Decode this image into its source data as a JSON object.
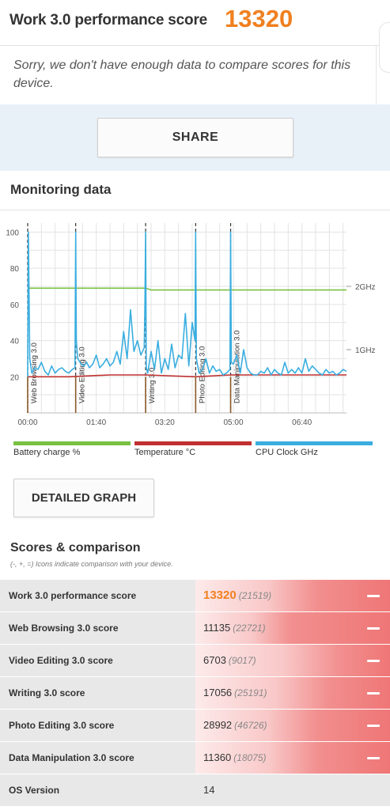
{
  "header": {
    "title": "Work 3.0 performance score",
    "score": "13320"
  },
  "notice": "Sorry, we don't have enough data to compare scores for this device.",
  "share_label": "SHARE",
  "monitoring": {
    "title": "Monitoring data",
    "chart_data": {
      "type": "line",
      "x_ticks": [
        "00:00",
        "01:40",
        "03:20",
        "05:00",
        "06:40"
      ],
      "y_ticks": [
        "100",
        "80",
        "60",
        "40",
        "20"
      ],
      "ylim": [
        0,
        105
      ],
      "y2_ticks": [
        "2GHz",
        "1GHz"
      ],
      "xlim_seconds": [
        0,
        465
      ],
      "grid": true,
      "markers": [
        {
          "label": "Web Browsing 3.0",
          "t": 0
        },
        {
          "label": "Video Editing 3.0",
          "t": 70
        },
        {
          "label": "Writing 3.0",
          "t": 172
        },
        {
          "label": "Photo Editing 3.0",
          "t": 245
        },
        {
          "label": "Data Manipulation 3.0",
          "t": 296
        }
      ],
      "series": [
        {
          "name": "Battery charge %",
          "color": "#7ac142",
          "x": [
            0,
            172,
            180,
            465
          ],
          "y": [
            69,
            69,
            68,
            68
          ]
        },
        {
          "name": "Temperature °C",
          "color": "#c03030",
          "x": [
            0,
            60,
            120,
            172,
            245,
            296,
            465
          ],
          "y": [
            20,
            20,
            21,
            21,
            20,
            21,
            21
          ]
        },
        {
          "name": "CPU Clock GHz",
          "color": "#3aaee0",
          "x": [
            0,
            1,
            3,
            6,
            10,
            15,
            20,
            25,
            30,
            35,
            40,
            45,
            50,
            55,
            60,
            65,
            69,
            70,
            71,
            73,
            78,
            82,
            86,
            90,
            95,
            100,
            105,
            110,
            115,
            120,
            125,
            130,
            135,
            140,
            145,
            150,
            155,
            160,
            165,
            170,
            171,
            172,
            173,
            175,
            180,
            185,
            190,
            195,
            200,
            205,
            210,
            215,
            220,
            225,
            230,
            235,
            240,
            244,
            245,
            246,
            250,
            255,
            260,
            265,
            270,
            275,
            280,
            285,
            290,
            295,
            296,
            297,
            300,
            305,
            310,
            315,
            320,
            325,
            330,
            335,
            340,
            345,
            350,
            355,
            360,
            365,
            370,
            375,
            380,
            385,
            390,
            395,
            400,
            405,
            410,
            415,
            420,
            425,
            430,
            435,
            440,
            445,
            450,
            455,
            460,
            465
          ],
          "y": [
            20,
            100,
            30,
            22,
            25,
            24,
            28,
            23,
            21,
            26,
            22,
            24,
            25,
            23,
            22,
            24,
            25,
            100,
            40,
            30,
            27,
            26,
            28,
            25,
            27,
            32,
            25,
            27,
            30,
            26,
            28,
            34,
            27,
            45,
            30,
            57,
            34,
            40,
            32,
            36,
            60,
            100,
            25,
            22,
            34,
            24,
            40,
            22,
            30,
            24,
            38,
            25,
            32,
            30,
            55,
            26,
            50,
            40,
            100,
            30,
            22,
            24,
            30,
            22,
            26,
            23,
            24,
            21,
            22,
            24,
            100,
            28,
            27,
            32,
            22,
            35,
            25,
            22,
            21,
            21,
            23,
            22,
            25,
            21,
            24,
            22,
            21,
            28,
            22,
            24,
            22,
            25,
            22,
            30,
            23,
            26,
            24,
            22,
            21,
            24,
            22,
            23,
            21,
            22,
            24,
            23
          ]
        }
      ]
    },
    "legend": [
      {
        "label": "Battery charge %",
        "color": "#7ac142"
      },
      {
        "label": "Temperature °C",
        "color": "#c03030"
      },
      {
        "label": "CPU Clock GHz",
        "color": "#3aaee0"
      }
    ]
  },
  "detail_label": "DETAILED GRAPH",
  "scores": {
    "title": "Scores & comparison",
    "note": "(-, +, =) Icons indicate comparison with your device.",
    "rows": [
      {
        "label": "Work 3.0 performance score",
        "value": "13320",
        "ref": "(21519)",
        "fill": 0.619
      },
      {
        "label": "Web Browsing 3.0 score",
        "value": "11135",
        "ref": "(22721)",
        "fill": 0.49
      },
      {
        "label": "Video Editing 3.0 score",
        "value": "6703",
        "ref": "(9017)",
        "fill": 0.743
      },
      {
        "label": "Writing 3.0 score",
        "value": "17056",
        "ref": "(25191)",
        "fill": 0.677
      },
      {
        "label": "Photo Editing 3.0 score",
        "value": "28992",
        "ref": "(46726)",
        "fill": 0.62
      },
      {
        "label": "Data Manipulation 3.0 score",
        "value": "11360",
        "ref": "(18075)",
        "fill": 0.628
      },
      {
        "label": "OS Version",
        "value": "14",
        "ref": "",
        "fill": 0
      }
    ]
  }
}
